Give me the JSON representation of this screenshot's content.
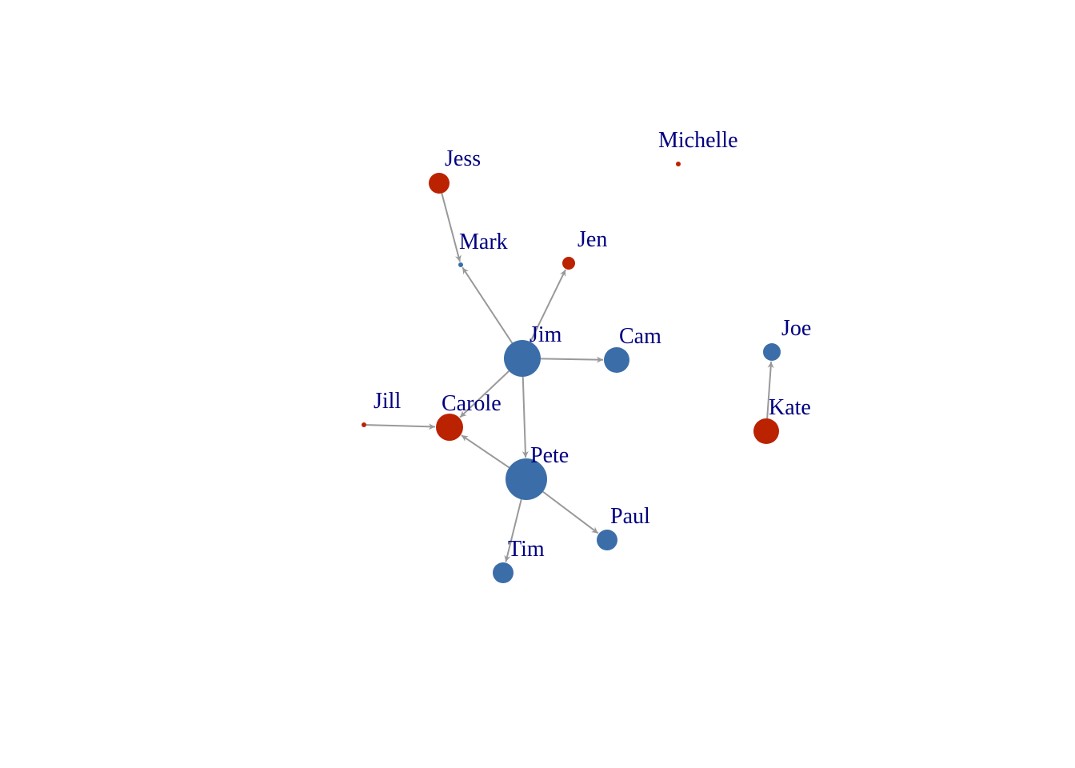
{
  "graph": {
    "directed": true,
    "colors": {
      "female": "#BB2200",
      "male": "#3B6EA8",
      "edge": "#999999",
      "label": "#000080"
    },
    "nodes": [
      {
        "id": "jim",
        "label": "Jim",
        "group": "male"
      },
      {
        "id": "pete",
        "label": "Pete",
        "group": "male"
      },
      {
        "id": "carole",
        "label": "Carole",
        "group": "female"
      },
      {
        "id": "jess",
        "label": "Jess",
        "group": "female"
      },
      {
        "id": "mark",
        "label": "Mark",
        "group": "male"
      },
      {
        "id": "jen",
        "label": "Jen",
        "group": "female"
      },
      {
        "id": "cam",
        "label": "Cam",
        "group": "male"
      },
      {
        "id": "jill",
        "label": "Jill",
        "group": "female"
      },
      {
        "id": "paul",
        "label": "Paul",
        "group": "male"
      },
      {
        "id": "tim",
        "label": "Tim",
        "group": "male"
      },
      {
        "id": "michelle",
        "label": "Michelle",
        "group": "female"
      },
      {
        "id": "joe",
        "label": "Joe",
        "group": "male"
      },
      {
        "id": "kate",
        "label": "Kate",
        "group": "female"
      }
    ],
    "edges": [
      {
        "from": "jess",
        "to": "mark"
      },
      {
        "from": "jim",
        "to": "mark"
      },
      {
        "from": "jim",
        "to": "jen"
      },
      {
        "from": "jim",
        "to": "cam"
      },
      {
        "from": "jim",
        "to": "carole"
      },
      {
        "from": "jim",
        "to": "pete"
      },
      {
        "from": "jill",
        "to": "carole"
      },
      {
        "from": "pete",
        "to": "carole"
      },
      {
        "from": "pete",
        "to": "paul"
      },
      {
        "from": "pete",
        "to": "tim"
      },
      {
        "from": "kate",
        "to": "joe"
      }
    ]
  }
}
